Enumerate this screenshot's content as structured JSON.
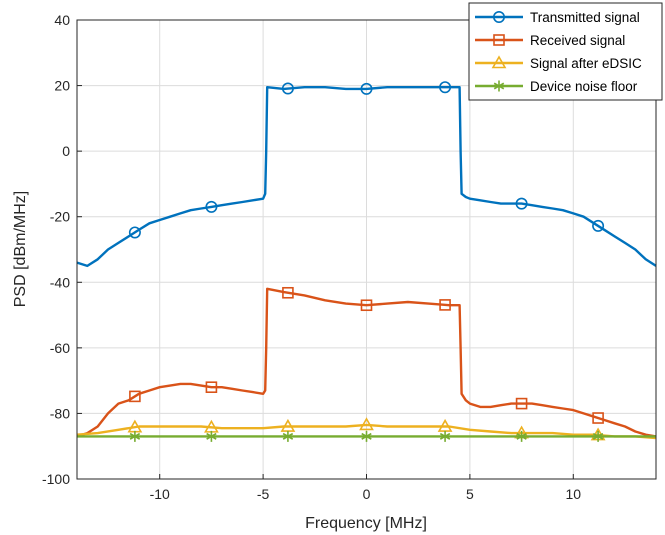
{
  "chart_data": {
    "type": "line",
    "title": "",
    "xlabel": "Frequency [MHz]",
    "ylabel": "PSD [dBm/MHz]",
    "xlim": [
      -14,
      14
    ],
    "ylim": [
      -100,
      40
    ],
    "xticks": [
      -10,
      -5,
      0,
      5,
      10
    ],
    "yticks": [
      -100,
      -80,
      -60,
      -40,
      -20,
      0,
      20,
      40
    ],
    "grid": true,
    "legend_position": "top-right",
    "series": [
      {
        "name": "Transmitted signal",
        "color": "#0072BD",
        "marker": "circle",
        "x": [
          -14,
          -13.5,
          -13,
          -12.5,
          -12,
          -11.5,
          -11,
          -10.5,
          -10,
          -9.5,
          -9,
          -8.5,
          -8,
          -7.5,
          -7,
          -6.5,
          -6,
          -5.5,
          -5,
          -4.9,
          -4.85,
          -4.8,
          -4,
          -3,
          -2,
          -1,
          0,
          1,
          2,
          3,
          4,
          4.4,
          4.5,
          4.55,
          4.6,
          4.8,
          5,
          5.5,
          6,
          6.5,
          7,
          7.5,
          8,
          8.5,
          9,
          9.5,
          10,
          10.5,
          11,
          11.5,
          12,
          12.5,
          13,
          13.5,
          14
        ],
        "y": [
          -34,
          -35,
          -33,
          -30,
          -28,
          -26,
          -24,
          -22,
          -21,
          -20,
          -19,
          -18,
          -17.5,
          -17,
          -16.5,
          -16,
          -15.5,
          -15,
          -14.5,
          -13,
          0,
          19.5,
          19,
          19.5,
          19.5,
          19,
          19,
          19.5,
          19.5,
          19.5,
          19.5,
          19.5,
          19.5,
          0,
          -13,
          -14,
          -14.5,
          -15,
          -15.5,
          -16,
          -16,
          -16,
          -16.5,
          -17,
          -17.5,
          -18,
          -19,
          -20,
          -22,
          -24,
          -26,
          -28,
          -30,
          -33,
          -35
        ],
        "marker_x": [
          -11.2,
          -7.5,
          -3.8,
          0,
          3.8,
          7.5,
          11.2
        ]
      },
      {
        "name": "Received signal",
        "color": "#D95319",
        "marker": "square",
        "x": [
          -14,
          -13.5,
          -13,
          -12.5,
          -12,
          -11.5,
          -11,
          -10.5,
          -10,
          -9.5,
          -9,
          -8.5,
          -8,
          -7.5,
          -7,
          -6.5,
          -6,
          -5.5,
          -5,
          -4.9,
          -4.85,
          -4.8,
          -4,
          -3,
          -2,
          -1,
          0,
          1,
          2,
          3,
          4,
          4.4,
          4.5,
          4.55,
          4.6,
          4.8,
          5,
          5.5,
          6,
          6.5,
          7,
          7.5,
          8,
          8.5,
          9,
          9.5,
          10,
          10.5,
          11,
          11.5,
          12,
          12.5,
          13,
          13.5,
          14
        ],
        "y": [
          -87,
          -86,
          -84,
          -80,
          -77,
          -76,
          -74,
          -73,
          -72,
          -71.5,
          -71,
          -71,
          -71.5,
          -72,
          -72,
          -72.5,
          -73,
          -73.5,
          -74,
          -73,
          -60,
          -42,
          -43,
          -44,
          -45.5,
          -46.5,
          -47,
          -46.5,
          -46,
          -46.5,
          -47,
          -47,
          -47,
          -60,
          -74,
          -76,
          -77,
          -78,
          -78,
          -77.5,
          -77,
          -77,
          -77,
          -77.5,
          -78,
          -78.5,
          -79,
          -80,
          -81,
          -82,
          -83,
          -84,
          -85.5,
          -86.5,
          -87
        ],
        "marker_x": [
          -11.2,
          -7.5,
          -3.8,
          0,
          3.8,
          7.5,
          11.2
        ]
      },
      {
        "name": "Signal after eDSIC",
        "color": "#EDB120",
        "marker": "triangle",
        "x": [
          -14,
          -13,
          -12,
          -11,
          -10,
          -9,
          -8,
          -7,
          -6,
          -5,
          -4,
          -3,
          -2,
          -1,
          0,
          1,
          2,
          3,
          4,
          5,
          6,
          7,
          8,
          9,
          10,
          11,
          12,
          13,
          14
        ],
        "y": [
          -86.5,
          -86,
          -85,
          -84,
          -84,
          -84,
          -84,
          -84.5,
          -84.5,
          -84.5,
          -84,
          -84,
          -84,
          -84,
          -83.5,
          -84,
          -84,
          -84,
          -84,
          -85,
          -85.5,
          -86,
          -86,
          -86,
          -86.5,
          -86.5,
          -87,
          -87,
          -87.5
        ],
        "marker_x": [
          -11.2,
          -7.5,
          -3.8,
          0,
          3.8,
          7.5,
          11.2
        ]
      },
      {
        "name": "Device noise floor",
        "color": "#77AC30",
        "marker": "asterisk",
        "x": [
          -14,
          -13,
          -12,
          -11,
          -10,
          -9,
          -8,
          -7,
          -6,
          -5,
          -4,
          -3,
          -2,
          -1,
          0,
          1,
          2,
          3,
          4,
          5,
          6,
          7,
          8,
          9,
          10,
          11,
          12,
          13,
          14
        ],
        "y": [
          -87,
          -87,
          -87,
          -87,
          -87,
          -87,
          -87,
          -87,
          -87,
          -87,
          -87,
          -87,
          -87,
          -87,
          -87,
          -87,
          -87,
          -87,
          -87,
          -87,
          -87,
          -87,
          -87,
          -87,
          -87,
          -87,
          -87,
          -87,
          -87
        ],
        "marker_x": [
          -11.2,
          -7.5,
          -3.8,
          0,
          3.8,
          7.5,
          11.2
        ]
      }
    ]
  }
}
